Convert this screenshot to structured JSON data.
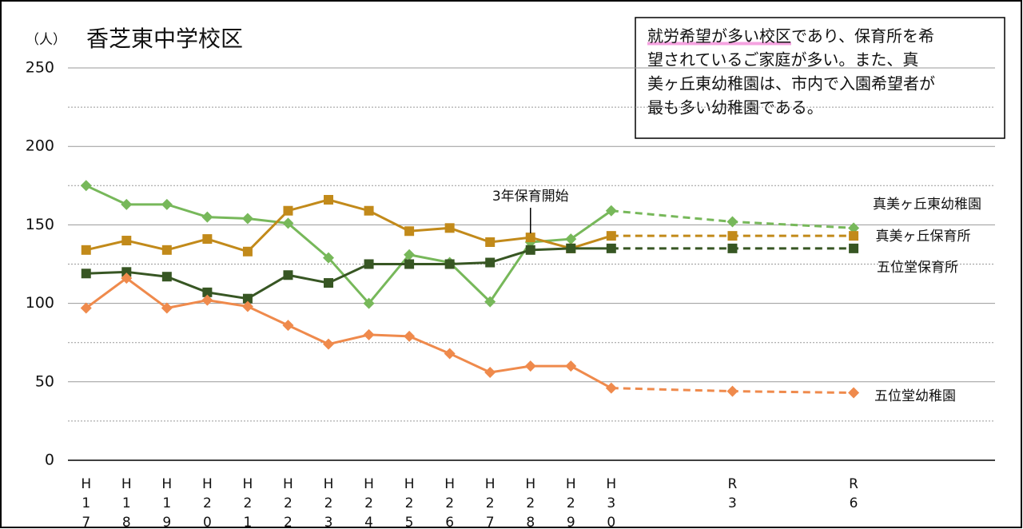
{
  "chart_data": {
    "type": "line",
    "title": "香芝東中学校区",
    "y_label": "（人）",
    "x": [
      17,
      18,
      19,
      20,
      21,
      22,
      23,
      24,
      25,
      26,
      27,
      28,
      29,
      30,
      33,
      36
    ],
    "xticks": [
      {
        "value": 17,
        "label": "H17"
      },
      {
        "value": 18,
        "label": "H18"
      },
      {
        "value": 19,
        "label": "H19"
      },
      {
        "value": 20,
        "label": "H20"
      },
      {
        "value": 21,
        "label": "H21"
      },
      {
        "value": 22,
        "label": "H22"
      },
      {
        "value": 23,
        "label": "H23"
      },
      {
        "value": 24,
        "label": "H24"
      },
      {
        "value": 25,
        "label": "H25"
      },
      {
        "value": 26,
        "label": "H26"
      },
      {
        "value": 27,
        "label": "H27"
      },
      {
        "value": 28,
        "label": "H28"
      },
      {
        "value": 29,
        "label": "H29"
      },
      {
        "value": 30,
        "label": "H30"
      },
      {
        "value": 33,
        "label": "R3"
      },
      {
        "value": 36,
        "label": "R6"
      }
    ],
    "xlim": [
      16.55,
      39.5
    ],
    "ylim": [
      0,
      250
    ],
    "yticks": [
      0,
      50,
      100,
      150,
      200,
      250
    ],
    "minor_yticks": [
      25,
      75,
      125,
      175,
      225
    ],
    "grid": true,
    "projection_from": 30,
    "series": [
      {
        "name": "真美ヶ丘東幼稚園",
        "color": "#77b85a",
        "marker": "diamond",
        "values": [
          175,
          163,
          163,
          155,
          154,
          151,
          129,
          100,
          131,
          126,
          101,
          139,
          141,
          159,
          152,
          148
        ]
      },
      {
        "name": "真美ヶ丘保育所",
        "color": "#c28a1a",
        "marker": "square",
        "values": [
          134,
          140,
          134,
          141,
          133,
          159,
          166,
          159,
          146,
          148,
          139,
          142,
          135,
          143,
          143,
          143
        ]
      },
      {
        "name": "五位堂保育所",
        "color": "#375623",
        "marker": "square",
        "values": [
          119,
          120,
          117,
          107,
          103,
          118,
          113,
          125,
          125,
          125,
          126,
          134,
          135,
          135,
          135,
          135
        ]
      },
      {
        "name": "五位堂幼稚園",
        "color": "#ef8a4c",
        "marker": "diamond",
        "values": [
          97,
          116,
          97,
          102,
          98,
          86,
          74,
          80,
          79,
          68,
          56,
          60,
          60,
          46,
          44,
          43
        ]
      }
    ],
    "annotation": {
      "text": "3年保育開始",
      "x": 28
    },
    "note": {
      "highlight": "就労希望が多い校区",
      "lines": [
        "であり、保育所を希",
        "望されているご家庭が多い。また、真",
        "美ヶ丘東幼稚園は、市内で入園希望者が",
        "最も多い幼稚園である。"
      ]
    }
  }
}
